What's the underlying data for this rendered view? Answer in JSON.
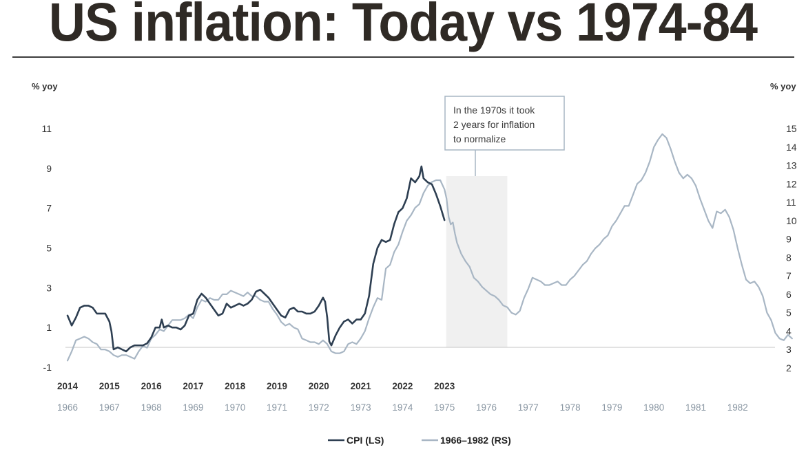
{
  "chart_data": {
    "type": "line",
    "title": "US inflation: Today vs 1974-84",
    "left_axis": {
      "label": "% yoy",
      "ylim": [
        -1,
        11
      ],
      "ticks": [
        -1,
        1,
        3,
        5,
        7,
        9,
        11
      ]
    },
    "right_axis": {
      "label": "% yoy",
      "ylim": [
        2,
        15
      ],
      "ticks": [
        2,
        3,
        4,
        5,
        6,
        7,
        8,
        9,
        10,
        11,
        12,
        13,
        14,
        15
      ]
    },
    "x_top_labels": [
      "2014",
      "2015",
      "2016",
      "2017",
      "2018",
      "2019",
      "2020",
      "2021",
      "2022",
      "2023"
    ],
    "x_bottom_labels": [
      "1966",
      "1967",
      "1968",
      "1969",
      "1970",
      "1971",
      "1972",
      "1973",
      "1974",
      "1975",
      "1976",
      "1977",
      "1978",
      "1979",
      "1980",
      "1981",
      "1982"
    ],
    "annotation": {
      "lines": [
        "In the 1970s it took",
        "2 years for inflation",
        "to normalize"
      ]
    },
    "shaded_region": {
      "from": 1975.04,
      "to": 1976.5
    },
    "legend": {
      "placement": "bottom-center"
    },
    "series": [
      {
        "name": "CPI (LS)",
        "axis": "left",
        "color": "#2e3f52",
        "x_axis": "top",
        "points": [
          [
            2014.0,
            1.6
          ],
          [
            2014.1,
            1.1
          ],
          [
            2014.2,
            1.5
          ],
          [
            2014.3,
            2.0
          ],
          [
            2014.4,
            2.1
          ],
          [
            2014.5,
            2.1
          ],
          [
            2014.6,
            2.0
          ],
          [
            2014.7,
            1.7
          ],
          [
            2014.8,
            1.7
          ],
          [
            2014.9,
            1.7
          ],
          [
            2015.0,
            1.3
          ],
          [
            2015.05,
            0.8
          ],
          [
            2015.1,
            -0.1
          ],
          [
            2015.2,
            0.0
          ],
          [
            2015.3,
            -0.1
          ],
          [
            2015.4,
            -0.2
          ],
          [
            2015.5,
            0.0
          ],
          [
            2015.6,
            0.1
          ],
          [
            2015.7,
            0.1
          ],
          [
            2015.8,
            0.1
          ],
          [
            2015.9,
            0.2
          ],
          [
            2016.0,
            0.5
          ],
          [
            2016.1,
            1.0
          ],
          [
            2016.2,
            1.0
          ],
          [
            2016.25,
            1.4
          ],
          [
            2016.3,
            1.0
          ],
          [
            2016.4,
            1.1
          ],
          [
            2016.5,
            1.0
          ],
          [
            2016.6,
            1.0
          ],
          [
            2016.7,
            0.9
          ],
          [
            2016.8,
            1.1
          ],
          [
            2016.9,
            1.6
          ],
          [
            2017.0,
            1.7
          ],
          [
            2017.1,
            2.4
          ],
          [
            2017.2,
            2.7
          ],
          [
            2017.3,
            2.5
          ],
          [
            2017.4,
            2.2
          ],
          [
            2017.5,
            1.9
          ],
          [
            2017.6,
            1.6
          ],
          [
            2017.7,
            1.7
          ],
          [
            2017.8,
            2.2
          ],
          [
            2017.9,
            2.0
          ],
          [
            2018.0,
            2.1
          ],
          [
            2018.1,
            2.2
          ],
          [
            2018.2,
            2.1
          ],
          [
            2018.3,
            2.2
          ],
          [
            2018.4,
            2.4
          ],
          [
            2018.5,
            2.8
          ],
          [
            2018.6,
            2.9
          ],
          [
            2018.7,
            2.7
          ],
          [
            2018.8,
            2.5
          ],
          [
            2018.9,
            2.2
          ],
          [
            2019.0,
            1.9
          ],
          [
            2019.1,
            1.6
          ],
          [
            2019.2,
            1.5
          ],
          [
            2019.3,
            1.9
          ],
          [
            2019.4,
            2.0
          ],
          [
            2019.5,
            1.8
          ],
          [
            2019.6,
            1.8
          ],
          [
            2019.7,
            1.7
          ],
          [
            2019.8,
            1.7
          ],
          [
            2019.9,
            1.8
          ],
          [
            2020.0,
            2.1
          ],
          [
            2020.05,
            2.3
          ],
          [
            2020.1,
            2.5
          ],
          [
            2020.15,
            2.3
          ],
          [
            2020.2,
            1.5
          ],
          [
            2020.25,
            0.3
          ],
          [
            2020.3,
            0.1
          ],
          [
            2020.4,
            0.6
          ],
          [
            2020.5,
            1.0
          ],
          [
            2020.6,
            1.3
          ],
          [
            2020.7,
            1.4
          ],
          [
            2020.8,
            1.2
          ],
          [
            2020.9,
            1.4
          ],
          [
            2021.0,
            1.4
          ],
          [
            2021.1,
            1.7
          ],
          [
            2021.2,
            2.6
          ],
          [
            2021.3,
            4.2
          ],
          [
            2021.4,
            5.0
          ],
          [
            2021.5,
            5.4
          ],
          [
            2021.6,
            5.3
          ],
          [
            2021.7,
            5.4
          ],
          [
            2021.8,
            6.2
          ],
          [
            2021.9,
            6.8
          ],
          [
            2022.0,
            7.0
          ],
          [
            2022.1,
            7.5
          ],
          [
            2022.2,
            8.5
          ],
          [
            2022.3,
            8.3
          ],
          [
            2022.4,
            8.6
          ],
          [
            2022.45,
            9.1
          ],
          [
            2022.5,
            8.5
          ],
          [
            2022.6,
            8.3
          ],
          [
            2022.7,
            8.2
          ],
          [
            2022.8,
            7.7
          ],
          [
            2022.9,
            7.1
          ],
          [
            2023.0,
            6.4
          ]
        ]
      },
      {
        "name": "1966–1982 (RS)",
        "axis": "right",
        "color": "#a8b6c4",
        "x_axis": "bottom",
        "points": [
          [
            1966.0,
            2.4
          ],
          [
            1966.1,
            2.9
          ],
          [
            1966.2,
            3.5
          ],
          [
            1966.3,
            3.6
          ],
          [
            1966.4,
            3.7
          ],
          [
            1966.5,
            3.6
          ],
          [
            1966.6,
            3.4
          ],
          [
            1966.7,
            3.3
          ],
          [
            1966.8,
            3.0
          ],
          [
            1966.9,
            3.0
          ],
          [
            1967.0,
            2.9
          ],
          [
            1967.1,
            2.7
          ],
          [
            1967.2,
            2.6
          ],
          [
            1967.3,
            2.7
          ],
          [
            1967.4,
            2.7
          ],
          [
            1967.5,
            2.6
          ],
          [
            1967.6,
            2.5
          ],
          [
            1967.7,
            2.9
          ],
          [
            1967.8,
            3.2
          ],
          [
            1967.9,
            3.1
          ],
          [
            1968.0,
            3.6
          ],
          [
            1968.1,
            3.8
          ],
          [
            1968.2,
            4.1
          ],
          [
            1968.3,
            4.0
          ],
          [
            1968.4,
            4.3
          ],
          [
            1968.5,
            4.6
          ],
          [
            1968.6,
            4.6
          ],
          [
            1968.7,
            4.6
          ],
          [
            1968.8,
            4.7
          ],
          [
            1968.9,
            4.9
          ],
          [
            1969.0,
            4.7
          ],
          [
            1969.1,
            5.3
          ],
          [
            1969.2,
            5.7
          ],
          [
            1969.3,
            5.6
          ],
          [
            1969.4,
            5.8
          ],
          [
            1969.5,
            5.7
          ],
          [
            1969.6,
            5.7
          ],
          [
            1969.7,
            6.0
          ],
          [
            1969.8,
            6.0
          ],
          [
            1969.9,
            6.2
          ],
          [
            1970.0,
            6.1
          ],
          [
            1970.1,
            6.0
          ],
          [
            1970.2,
            5.9
          ],
          [
            1970.3,
            6.1
          ],
          [
            1970.4,
            5.9
          ],
          [
            1970.5,
            5.9
          ],
          [
            1970.6,
            5.7
          ],
          [
            1970.7,
            5.6
          ],
          [
            1970.8,
            5.6
          ],
          [
            1970.9,
            5.2
          ],
          [
            1971.0,
            4.9
          ],
          [
            1971.1,
            4.5
          ],
          [
            1971.2,
            4.3
          ],
          [
            1971.3,
            4.4
          ],
          [
            1971.4,
            4.2
          ],
          [
            1971.5,
            4.1
          ],
          [
            1971.6,
            3.6
          ],
          [
            1971.7,
            3.5
          ],
          [
            1971.8,
            3.4
          ],
          [
            1971.9,
            3.4
          ],
          [
            1972.0,
            3.3
          ],
          [
            1972.1,
            3.5
          ],
          [
            1972.2,
            3.3
          ],
          [
            1972.3,
            2.9
          ],
          [
            1972.4,
            2.8
          ],
          [
            1972.5,
            2.8
          ],
          [
            1972.6,
            2.9
          ],
          [
            1972.7,
            3.3
          ],
          [
            1972.8,
            3.4
          ],
          [
            1972.9,
            3.3
          ],
          [
            1973.0,
            3.6
          ],
          [
            1973.1,
            4.0
          ],
          [
            1973.2,
            4.7
          ],
          [
            1973.3,
            5.3
          ],
          [
            1973.4,
            5.8
          ],
          [
            1973.5,
            5.7
          ],
          [
            1973.6,
            7.4
          ],
          [
            1973.7,
            7.6
          ],
          [
            1973.8,
            8.3
          ],
          [
            1973.9,
            8.7
          ],
          [
            1974.0,
            9.4
          ],
          [
            1974.1,
            10.0
          ],
          [
            1974.2,
            10.3
          ],
          [
            1974.3,
            10.7
          ],
          [
            1974.4,
            10.9
          ],
          [
            1974.5,
            11.5
          ],
          [
            1974.6,
            11.9
          ],
          [
            1974.7,
            12.1
          ],
          [
            1974.8,
            12.2
          ],
          [
            1974.9,
            12.2
          ],
          [
            1975.0,
            11.7
          ],
          [
            1975.05,
            11.2
          ],
          [
            1975.1,
            10.2
          ],
          [
            1975.15,
            9.8
          ],
          [
            1975.2,
            9.9
          ],
          [
            1975.25,
            9.3
          ],
          [
            1975.3,
            8.8
          ],
          [
            1975.4,
            8.2
          ],
          [
            1975.5,
            7.8
          ],
          [
            1975.6,
            7.5
          ],
          [
            1975.7,
            6.9
          ],
          [
            1975.8,
            6.7
          ],
          [
            1975.9,
            6.4
          ],
          [
            1976.0,
            6.2
          ],
          [
            1976.1,
            6.0
          ],
          [
            1976.2,
            5.9
          ],
          [
            1976.3,
            5.7
          ],
          [
            1976.4,
            5.4
          ],
          [
            1976.5,
            5.3
          ],
          [
            1976.6,
            5.0
          ],
          [
            1976.7,
            4.9
          ],
          [
            1976.8,
            5.1
          ],
          [
            1976.9,
            5.8
          ],
          [
            1977.0,
            6.3
          ],
          [
            1977.1,
            6.9
          ],
          [
            1977.2,
            6.8
          ],
          [
            1977.3,
            6.7
          ],
          [
            1977.4,
            6.5
          ],
          [
            1977.5,
            6.5
          ],
          [
            1977.6,
            6.6
          ],
          [
            1977.7,
            6.7
          ],
          [
            1977.8,
            6.5
          ],
          [
            1977.9,
            6.5
          ],
          [
            1978.0,
            6.8
          ],
          [
            1978.1,
            7.0
          ],
          [
            1978.2,
            7.3
          ],
          [
            1978.3,
            7.6
          ],
          [
            1978.4,
            7.8
          ],
          [
            1978.5,
            8.2
          ],
          [
            1978.6,
            8.5
          ],
          [
            1978.7,
            8.7
          ],
          [
            1978.8,
            9.0
          ],
          [
            1978.9,
            9.2
          ],
          [
            1979.0,
            9.7
          ],
          [
            1979.1,
            10.0
          ],
          [
            1979.2,
            10.4
          ],
          [
            1979.3,
            10.8
          ],
          [
            1979.4,
            10.8
          ],
          [
            1979.5,
            11.4
          ],
          [
            1979.6,
            12.0
          ],
          [
            1979.7,
            12.2
          ],
          [
            1979.8,
            12.6
          ],
          [
            1979.9,
            13.2
          ],
          [
            1980.0,
            14.0
          ],
          [
            1980.1,
            14.4
          ],
          [
            1980.2,
            14.7
          ],
          [
            1980.3,
            14.5
          ],
          [
            1980.4,
            13.9
          ],
          [
            1980.5,
            13.2
          ],
          [
            1980.6,
            12.6
          ],
          [
            1980.7,
            12.3
          ],
          [
            1980.8,
            12.5
          ],
          [
            1980.9,
            12.3
          ],
          [
            1981.0,
            11.9
          ],
          [
            1981.1,
            11.2
          ],
          [
            1981.2,
            10.6
          ],
          [
            1981.3,
            10.0
          ],
          [
            1981.4,
            9.6
          ],
          [
            1981.5,
            10.5
          ],
          [
            1981.6,
            10.4
          ],
          [
            1981.7,
            10.6
          ],
          [
            1981.8,
            10.2
          ],
          [
            1981.9,
            9.5
          ],
          [
            1982.0,
            8.5
          ],
          [
            1982.1,
            7.6
          ],
          [
            1982.2,
            6.8
          ],
          [
            1982.3,
            6.6
          ],
          [
            1982.4,
            6.7
          ],
          [
            1982.5,
            6.4
          ],
          [
            1982.6,
            5.9
          ],
          [
            1982.7,
            5.0
          ],
          [
            1982.8,
            4.6
          ],
          [
            1982.9,
            3.9
          ],
          [
            1983.0,
            3.6
          ],
          [
            1983.1,
            3.5
          ],
          [
            1983.2,
            3.8
          ],
          [
            1983.3,
            3.6
          ]
        ]
      }
    ]
  }
}
